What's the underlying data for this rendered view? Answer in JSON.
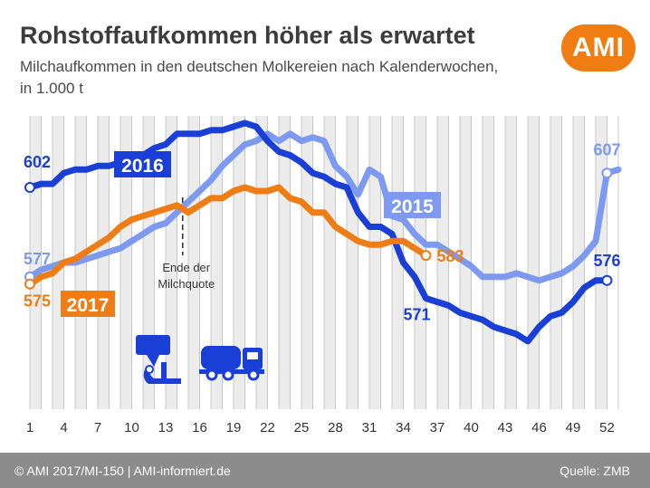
{
  "title": "Rohstoffaufkommen höher als erwartet",
  "subtitle_line1": "Milchaufkommen in den deutschen Molkereien nach Kalenderwochen,",
  "subtitle_line2": "in 1.000 t",
  "logo": "AMI",
  "footer": {
    "left": "© AMI 2017/MI-150 | AMI-informiert.de",
    "right": "Quelle: ZMB"
  },
  "colors": {
    "s2016": "#1a3fd6",
    "s2015": "#7e9af0",
    "s2017": "#ef7d16",
    "grid": "#c8c8c8",
    "band": "#ececec",
    "annotation": "#333333"
  },
  "chart_data": {
    "type": "line",
    "xlabel": "",
    "ylabel": "",
    "xlim": [
      1,
      53
    ],
    "ylim": [
      540,
      622
    ],
    "x_ticks": [
      1,
      4,
      7,
      10,
      13,
      16,
      19,
      22,
      25,
      28,
      31,
      34,
      37,
      40,
      43,
      46,
      49,
      52
    ],
    "series": [
      {
        "name": "2016",
        "label": "2016",
        "start_label": "602",
        "end_label": "576",
        "x": [
          1,
          2,
          3,
          4,
          5,
          6,
          7,
          8,
          9,
          10,
          11,
          12,
          13,
          14,
          15,
          16,
          17,
          18,
          19,
          20,
          21,
          22,
          23,
          24,
          25,
          26,
          27,
          28,
          29,
          30,
          31,
          32,
          33,
          34,
          35,
          36,
          37,
          38,
          39,
          40,
          41,
          42,
          43,
          44,
          45,
          46,
          47,
          48,
          49,
          50,
          51,
          52
        ],
        "values": [
          602,
          603,
          603,
          606,
          607,
          607,
          608,
          608,
          609,
          610,
          611,
          613,
          614,
          617,
          617,
          617,
          618,
          618,
          619,
          620,
          619,
          615,
          612,
          611,
          609,
          606,
          605,
          603,
          602,
          595,
          591,
          591,
          589,
          581,
          577,
          571,
          570,
          569,
          567,
          566,
          565,
          563,
          562,
          561,
          559,
          563,
          566,
          567,
          570,
          574,
          576,
          576
        ]
      },
      {
        "name": "2015",
        "label": "2015",
        "start_label": "577",
        "end_label": "607",
        "x": [
          1,
          2,
          3,
          4,
          5,
          6,
          7,
          8,
          9,
          10,
          11,
          12,
          13,
          14,
          15,
          16,
          17,
          18,
          19,
          20,
          21,
          22,
          23,
          24,
          25,
          26,
          27,
          28,
          29,
          30,
          31,
          32,
          33,
          34,
          35,
          36,
          37,
          38,
          39,
          40,
          41,
          42,
          43,
          44,
          45,
          46,
          47,
          48,
          49,
          50,
          51,
          52,
          53
        ],
        "values": [
          577,
          579,
          580,
          581,
          581,
          582,
          583,
          584,
          585,
          587,
          589,
          591,
          592,
          595,
          598,
          601,
          604,
          608,
          611,
          614,
          615,
          617,
          615,
          617,
          615,
          616,
          615,
          608,
          605,
          600,
          607,
          605,
          594,
          593,
          589,
          586,
          586,
          584,
          582,
          580,
          577,
          577,
          577,
          578,
          577,
          576,
          577,
          578,
          580,
          583,
          587,
          606,
          607
        ]
      },
      {
        "name": "2017",
        "label": "2017",
        "start_label": "575",
        "end_label": "583",
        "x": [
          1,
          2,
          3,
          4,
          5,
          6,
          7,
          8,
          9,
          10,
          11,
          12,
          13,
          14,
          15,
          16,
          17,
          18,
          19,
          20,
          21,
          22,
          23,
          24,
          25,
          26,
          27,
          28,
          29,
          30,
          31,
          32,
          33,
          34,
          35,
          36
        ],
        "values": [
          575,
          577,
          578,
          581,
          582,
          584,
          586,
          588,
          591,
          593,
          594,
          595,
          596,
          597,
          595,
          597,
          599,
          599,
          601,
          602,
          601,
          601,
          602,
          599,
          598,
          595,
          595,
          591,
          589,
          587,
          586,
          586,
          587,
          587,
          585,
          583
        ]
      }
    ],
    "annotation": {
      "text_line1": "Ende der",
      "text_line2": "Milchquote",
      "week": 14.5
    }
  }
}
